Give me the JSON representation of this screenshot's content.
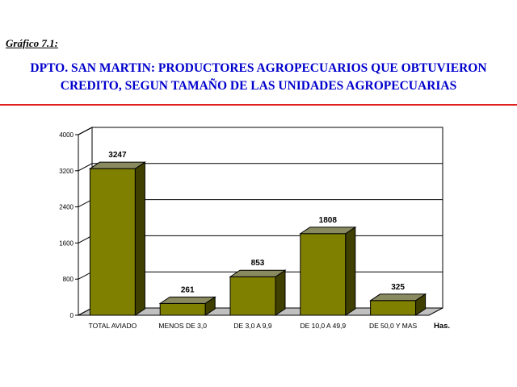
{
  "header": {
    "caption": "Gráfico 7.1:",
    "title_line1": "DPTO. SAN MARTIN: PRODUCTORES AGROPECUARIOS QUE OBTUVIERON",
    "title_line2": "CREDITO, SEGUN TAMAÑO DE LAS UNIDADES AGROPECUARIAS"
  },
  "colors": {
    "title": "#0000cc",
    "rule": "#e0201c",
    "bar_front": "#808000",
    "bar_side": "#3f3f00",
    "bar_top": "#8a8a60",
    "wall": "#ffffff",
    "floor": "#c0c0c0"
  },
  "chart_data": {
    "type": "bar",
    "title": "",
    "xlabel": "",
    "ylabel": "",
    "unit_label": "Has.",
    "categories": [
      "TOTAL AVIADO",
      "MENOS DE 3,0",
      "DE 3,0 A 9,9",
      "DE 10,0 A 49,9",
      "DE 50,0 Y MAS"
    ],
    "values": [
      3247,
      261,
      853,
      1808,
      325
    ],
    "ylim": [
      0,
      4000
    ],
    "yticks": [
      0,
      800,
      1600,
      2400,
      3200,
      4000
    ],
    "grid": true,
    "legend": "none"
  }
}
